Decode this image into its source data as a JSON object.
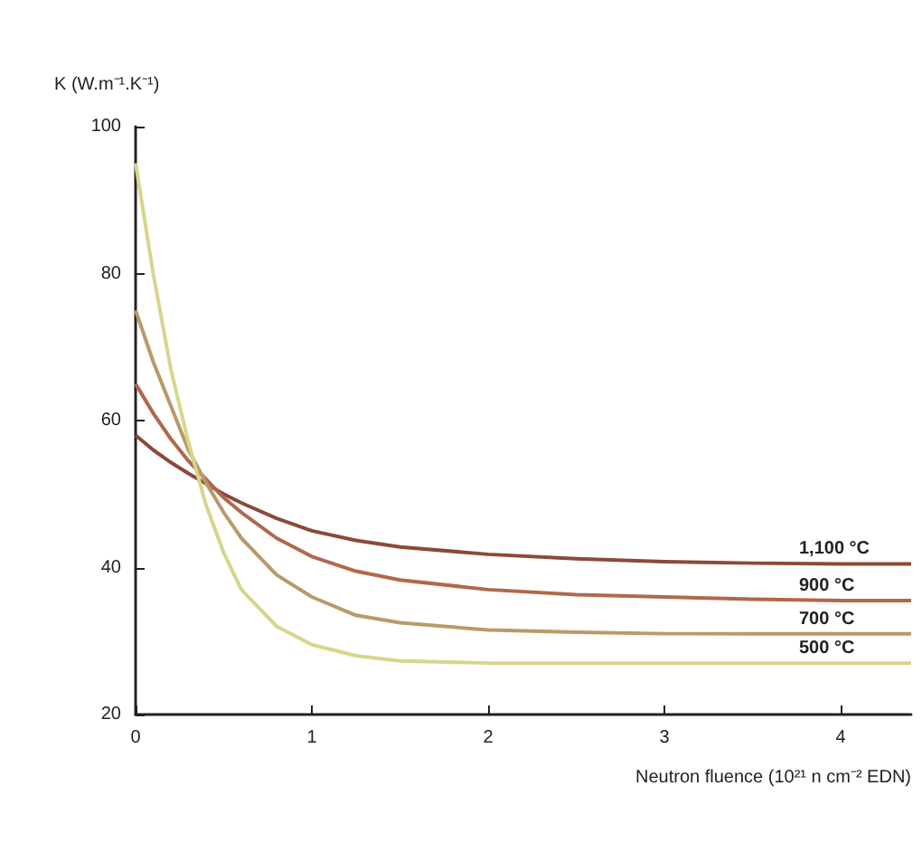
{
  "chart_data": {
    "type": "line",
    "ylabel": "K (W.m⁻¹.K⁻¹)",
    "xlabel": "Neutron fluence (10²¹ n cm⁻² EDN)",
    "x": [
      0,
      0.1,
      0.2,
      0.3,
      0.4,
      0.5,
      0.6,
      0.8,
      1,
      1.25,
      1.5,
      2,
      2.5,
      3,
      3.5,
      4,
      4.4
    ],
    "series": [
      {
        "name": "1,100 °C",
        "color": "#8a4a3a",
        "values": [
          58,
          56,
          54.3,
          52.8,
          51.4,
          50,
          48.8,
          46.7,
          45,
          43.7,
          42.8,
          41.8,
          41.2,
          40.8,
          40.6,
          40.5,
          40.5
        ]
      },
      {
        "name": "900 °C",
        "color": "#b0684a",
        "values": [
          65,
          61,
          57.5,
          54.5,
          52,
          49.5,
          47.5,
          44,
          41.5,
          39.5,
          38.3,
          37,
          36.3,
          36,
          35.7,
          35.5,
          35.5
        ]
      },
      {
        "name": "700 °C",
        "color": "#b89a6a",
        "values": [
          75,
          68,
          62,
          56,
          51.5,
          47.5,
          44,
          39,
          36,
          33.5,
          32.5,
          31.5,
          31.2,
          31,
          31,
          31,
          31
        ]
      },
      {
        "name": "500 °C",
        "color": "#d6d68c",
        "values": [
          95,
          80,
          67,
          57,
          48.5,
          42,
          37,
          32,
          29.5,
          28,
          27.3,
          27,
          27,
          27,
          27,
          27,
          27
        ]
      }
    ],
    "xlim": [
      0,
      4.4
    ],
    "xticks": [
      0,
      1,
      2,
      3,
      4
    ],
    "ylim": [
      20,
      100
    ],
    "yticks": [
      20,
      40,
      60,
      80,
      100
    ],
    "grid": false,
    "legend": false,
    "marker": "none",
    "line_style": "solid"
  }
}
